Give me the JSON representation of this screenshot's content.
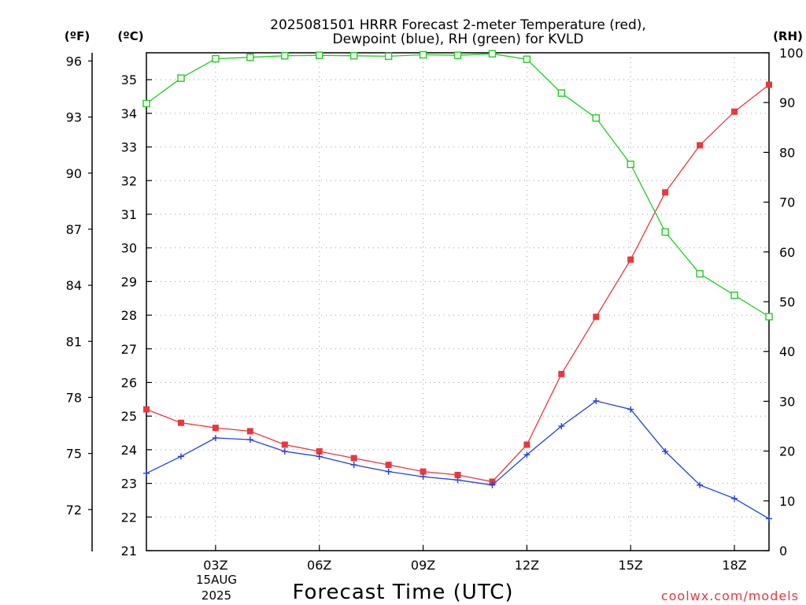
{
  "chart_data": {
    "type": "line",
    "title_line1": "2025081501 HRRR Forecast 2-meter Temperature (red),",
    "title_line2": "Dewpoint (blue), RH (green) for KVLD",
    "xlabel": "Forecast Time (UTC)",
    "unit_left_f": "(ºF)",
    "unit_left_c": "(ºC)",
    "unit_right": "(RH)",
    "x_ticks": [
      "03Z",
      "06Z",
      "09Z",
      "12Z",
      "15Z",
      "18Z"
    ],
    "x_tick_sub1": "15AUG",
    "x_tick_sub2": "2025",
    "credit": "coolwx.com/models",
    "ylim_c": [
      21,
      35.8
    ],
    "ylim_rh": [
      0,
      100
    ],
    "y_ticks_c": [
      21,
      22,
      23,
      24,
      25,
      26,
      27,
      28,
      29,
      30,
      31,
      32,
      33,
      34,
      35
    ],
    "y_ticks_f": [
      72,
      75,
      78,
      81,
      84,
      87,
      90,
      93,
      96
    ],
    "y_ticks_rh": [
      0,
      10,
      20,
      30,
      40,
      50,
      60,
      70,
      80,
      90,
      100
    ],
    "x_hours": [
      1,
      2,
      3,
      4,
      5,
      6,
      7,
      8,
      9,
      10,
      11,
      12,
      13,
      14,
      15,
      16,
      17,
      18,
      19
    ],
    "series": [
      {
        "name": "Temperature",
        "color": "#e8383d",
        "marker": "filled-square",
        "values": [
          25.2,
          24.8,
          24.65,
          24.55,
          24.15,
          23.95,
          23.75,
          23.55,
          23.35,
          23.25,
          23.05,
          24.15,
          26.25,
          27.95,
          29.65,
          31.65,
          33.05,
          34.05,
          34.85
        ]
      },
      {
        "name": "Dewpoint",
        "color": "#2040e0",
        "marker": "plus",
        "values": [
          23.3,
          23.8,
          24.35,
          24.3,
          23.95,
          23.8,
          23.55,
          23.35,
          23.2,
          23.1,
          22.95,
          23.85,
          24.7,
          25.45,
          25.2,
          23.95,
          22.95,
          22.55,
          21.95
        ]
      },
      {
        "name": "RH",
        "color": "#22cc22",
        "marker": "open-square",
        "axis": "right",
        "values": [
          89.8,
          94.9,
          98.8,
          99.1,
          99.4,
          99.5,
          99.4,
          99.3,
          99.6,
          99.5,
          99.8,
          98.7,
          91.9,
          86.9,
          77.6,
          64.0,
          55.6,
          51.3,
          47.0
        ]
      }
    ]
  }
}
